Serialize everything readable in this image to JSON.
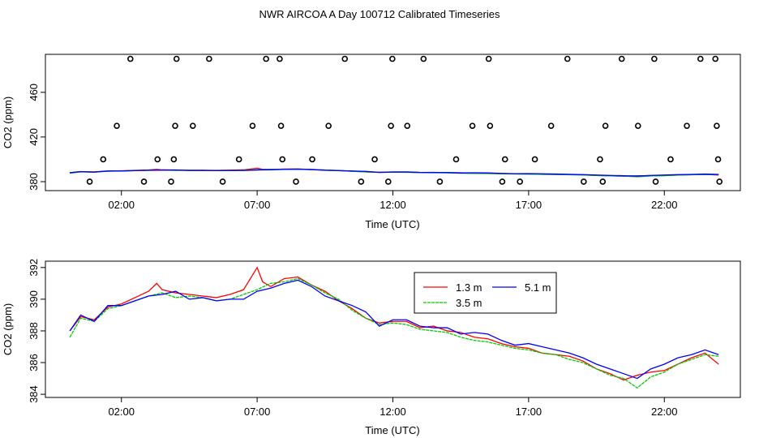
{
  "title": "NWR AIRCOA A  Day 100712  Calibrated Timeseries",
  "chart_data": [
    {
      "type": "scatter",
      "title": "",
      "xlabel": "Time (UTC)",
      "ylabel": "CO2 (ppm)",
      "xlim": [
        -0.8,
        24.8
      ],
      "ylim": [
        372,
        494
      ],
      "xtick_values": [
        2,
        7,
        12,
        17,
        22
      ],
      "xtick_labels": [
        "02:00",
        "07:00",
        "12:00",
        "17:00",
        "22:00"
      ],
      "ytick_values": [
        380,
        420,
        460
      ],
      "ytick_labels": [
        "380",
        "420",
        "460"
      ],
      "circles_x": [
        0.83,
        1.33,
        1.83,
        2.33,
        2.83,
        3.33,
        3.83,
        3.93,
        3.98,
        4.03,
        4.63,
        5.23,
        5.73,
        6.33,
        6.83,
        7.33,
        7.83,
        7.88,
        7.93,
        8.43,
        9.03,
        9.63,
        10.23,
        10.83,
        11.33,
        11.83,
        11.93,
        11.98,
        12.53,
        13.13,
        13.73,
        14.33,
        14.93,
        15.53,
        15.58,
        16.03,
        16.13,
        16.68,
        17.23,
        17.83,
        18.43,
        19.03,
        19.63,
        19.73,
        19.83,
        20.43,
        21.03,
        21.63,
        21.68,
        22.23,
        22.83,
        23.33,
        23.88,
        23.93,
        23.98,
        24.03
      ],
      "circles_y": [
        380,
        400,
        430,
        490,
        380,
        400,
        380,
        400,
        430,
        490,
        430,
        490,
        380,
        400,
        430,
        490,
        490,
        430,
        400,
        380,
        400,
        430,
        490,
        380,
        400,
        380,
        430,
        490,
        430,
        490,
        380,
        400,
        430,
        490,
        430,
        380,
        400,
        380,
        400,
        430,
        490,
        380,
        400,
        380,
        430,
        490,
        430,
        490,
        380,
        400,
        430,
        490,
        490,
        430,
        400,
        380
      ],
      "series": [
        {
          "name": "1.3 m",
          "color": "#ff0000"
        },
        {
          "name": "3.5 m",
          "color": "#00cc00"
        },
        {
          "name": "5.1 m",
          "color": "#0000ff"
        }
      ]
    },
    {
      "type": "line",
      "title": "",
      "xlabel": "Time (UTC)",
      "ylabel": "CO2 (ppm)",
      "xlim": [
        -0.8,
        24.8
      ],
      "ylim": [
        383.8,
        392.4
      ],
      "xtick_values": [
        2,
        7,
        12,
        17,
        22
      ],
      "xtick_labels": [
        "02:00",
        "07:00",
        "12:00",
        "17:00",
        "22:00"
      ],
      "ytick_values": [
        384,
        386,
        388,
        390,
        392
      ],
      "ytick_labels": [
        "384",
        "386",
        "388",
        "390",
        "392"
      ],
      "legend_position": "top-right",
      "series": [
        {
          "name": "1.3 m",
          "color": "#ff0000",
          "x": [
            0.1,
            0.5,
            1.0,
            1.5,
            2.0,
            2.5,
            3.0,
            3.3,
            3.5,
            4.0,
            4.5,
            5.0,
            5.5,
            6.0,
            6.5,
            7.0,
            7.2,
            7.5,
            8.0,
            8.5,
            9.0,
            9.5,
            10.0,
            10.5,
            11.0,
            11.5,
            12.0,
            12.5,
            13.0,
            13.5,
            14.0,
            14.5,
            15.0,
            15.5,
            16.0,
            16.5,
            17.0,
            17.5,
            18.0,
            18.5,
            19.0,
            19.5,
            20.0,
            20.5,
            21.0,
            21.5,
            22.0,
            22.5,
            23.0,
            23.5,
            24.0
          ],
          "y": [
            388.0,
            388.9,
            388.7,
            389.5,
            389.7,
            390.1,
            390.5,
            391.0,
            390.6,
            390.4,
            390.3,
            390.2,
            390.1,
            390.3,
            390.6,
            392.0,
            391.1,
            390.8,
            391.3,
            391.4,
            390.9,
            390.5,
            389.9,
            389.4,
            388.8,
            388.5,
            388.6,
            388.6,
            388.2,
            388.3,
            388.0,
            387.9,
            387.6,
            387.5,
            387.2,
            387.0,
            386.9,
            386.6,
            386.5,
            386.4,
            386.1,
            385.6,
            385.3,
            384.9,
            385.2,
            385.4,
            385.5,
            385.9,
            386.3,
            386.6,
            385.9
          ]
        },
        {
          "name": "3.5 m",
          "color": "#00cc00",
          "x": [
            0.1,
            0.5,
            1.0,
            1.5,
            2.0,
            2.5,
            3.0,
            3.5,
            4.0,
            4.5,
            5.0,
            5.5,
            6.0,
            6.5,
            7.0,
            7.5,
            8.0,
            8.5,
            9.0,
            9.5,
            10.0,
            10.5,
            11.0,
            11.5,
            12.0,
            12.5,
            13.0,
            13.5,
            14.0,
            14.5,
            15.0,
            15.5,
            16.0,
            16.5,
            17.0,
            17.5,
            18.0,
            18.5,
            19.0,
            19.5,
            20.0,
            20.5,
            21.0,
            21.5,
            22.0,
            22.5,
            23.0,
            23.5,
            24.0
          ],
          "y": [
            387.6,
            388.8,
            388.6,
            389.4,
            389.6,
            389.9,
            390.2,
            390.4,
            390.1,
            390.2,
            390.1,
            389.9,
            390.0,
            390.3,
            390.6,
            391.0,
            391.1,
            391.3,
            390.9,
            390.4,
            390.0,
            389.3,
            388.8,
            388.4,
            388.5,
            388.4,
            388.1,
            388.0,
            387.9,
            387.6,
            387.4,
            387.3,
            387.1,
            386.9,
            386.8,
            386.6,
            386.5,
            386.2,
            386.0,
            385.6,
            385.2,
            385.0,
            384.4,
            385.1,
            385.4,
            385.9,
            386.2,
            386.5,
            386.4
          ]
        },
        {
          "name": "5.1 m",
          "color": "#0000ff",
          "x": [
            0.1,
            0.5,
            1.0,
            1.5,
            2.0,
            2.5,
            3.0,
            3.5,
            4.0,
            4.5,
            5.0,
            5.5,
            6.0,
            6.5,
            7.0,
            7.5,
            8.0,
            8.5,
            9.0,
            9.5,
            10.0,
            10.5,
            11.0,
            11.5,
            12.0,
            12.5,
            13.0,
            13.5,
            14.0,
            14.5,
            15.0,
            15.5,
            16.0,
            16.5,
            17.0,
            17.5,
            18.0,
            18.5,
            19.0,
            19.5,
            20.0,
            20.5,
            21.0,
            21.5,
            22.0,
            22.5,
            23.0,
            23.5,
            24.0
          ],
          "y": [
            388.0,
            389.0,
            388.6,
            389.6,
            389.6,
            389.9,
            390.2,
            390.3,
            390.5,
            390.0,
            390.1,
            389.9,
            390.0,
            390.0,
            390.5,
            390.7,
            391.0,
            391.2,
            390.8,
            390.2,
            389.9,
            389.6,
            389.2,
            388.3,
            388.7,
            388.7,
            388.3,
            388.2,
            388.2,
            387.8,
            387.9,
            387.8,
            387.4,
            387.1,
            387.2,
            387.0,
            386.8,
            386.6,
            386.3,
            385.9,
            385.6,
            385.3,
            385.0,
            385.6,
            385.9,
            386.3,
            386.5,
            386.8,
            386.5
          ]
        }
      ]
    }
  ]
}
